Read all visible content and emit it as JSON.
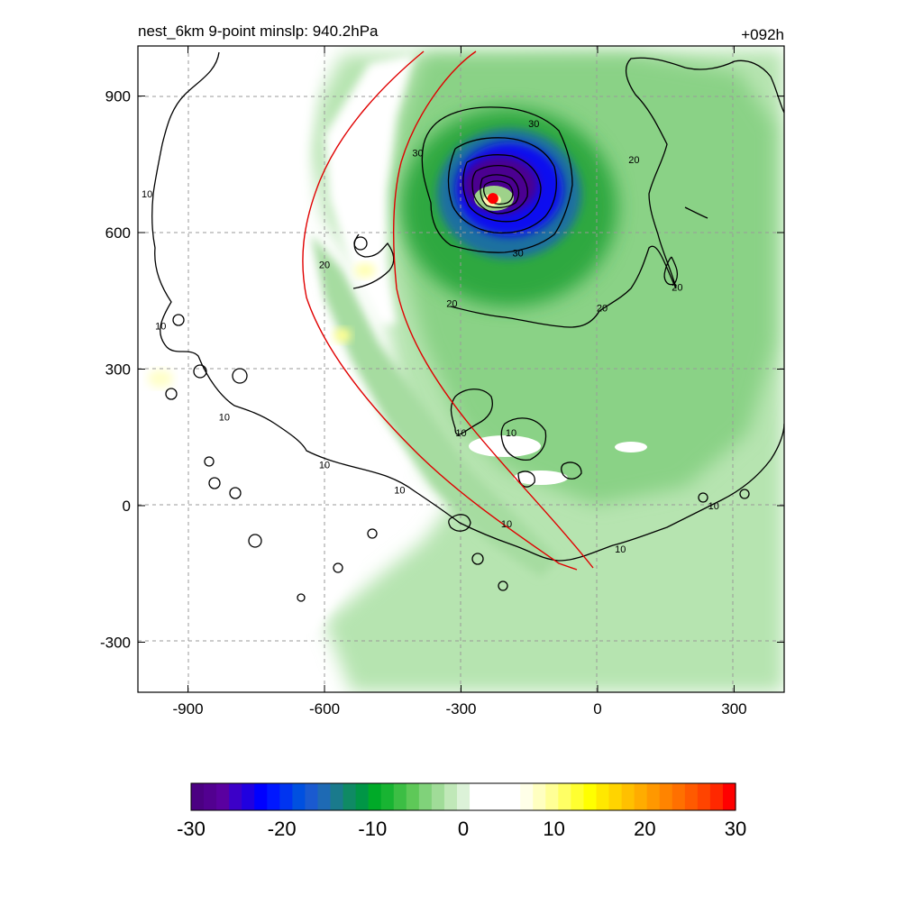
{
  "chart_data": {
    "type": "heatmap",
    "title_left": "nest_6km  9-point minslp: 940.2hPa",
    "title_right": "+092h",
    "xlabel": "",
    "ylabel": "",
    "xlim": [
      -1010,
      410
    ],
    "ylim": [
      -410,
      1010
    ],
    "x_ticks": [
      -900,
      -600,
      -300,
      0,
      300
    ],
    "y_ticks": [
      900,
      600,
      300,
      0,
      -300
    ],
    "x_tick_labels": [
      "-900",
      "-600",
      "-300",
      "0",
      "300"
    ],
    "y_tick_labels": [
      "900",
      "600",
      "300",
      "0",
      "-300"
    ],
    "grid": "dashed",
    "storm_center": {
      "x": -230,
      "y": 675,
      "color": "#ff0000"
    },
    "contour_labels": [
      {
        "text": "30",
        "x": -140,
        "y": 840
      },
      {
        "text": "30",
        "x": -395,
        "y": 775
      },
      {
        "text": "30",
        "x": -175,
        "y": 555
      },
      {
        "text": "20",
        "x": 80,
        "y": 760
      },
      {
        "text": "20",
        "x": 175,
        "y": 480
      },
      {
        "text": "20",
        "x": -320,
        "y": 445
      },
      {
        "text": "20",
        "x": 10,
        "y": 435
      },
      {
        "text": "20",
        "x": -600,
        "y": 530
      },
      {
        "text": "10",
        "x": -990,
        "y": 685
      },
      {
        "text": "10",
        "x": -960,
        "y": 395
      },
      {
        "text": "10",
        "x": -820,
        "y": 195
      },
      {
        "text": "10",
        "x": -600,
        "y": 90
      },
      {
        "text": "10",
        "x": -435,
        "y": 35
      },
      {
        "text": "10",
        "x": -300,
        "y": 160
      },
      {
        "text": "10",
        "x": -190,
        "y": 160
      },
      {
        "text": "10",
        "x": -200,
        "y": -40
      },
      {
        "text": "10",
        "x": 50,
        "y": -95
      },
      {
        "text": "10",
        "x": 255,
        "y": 0
      }
    ],
    "colorbar": {
      "ticks": [
        "-30",
        "-20",
        "-10",
        "0",
        "10",
        "20",
        "30"
      ],
      "range": [
        -30,
        30
      ],
      "colors": [
        "#4b0082",
        "#520090",
        "#5a00a0",
        "#3c00c8",
        "#2000e0",
        "#0000ff",
        "#0018ff",
        "#0034f0",
        "#0050e0",
        "#1a5ad0",
        "#1e6ab4",
        "#1a7a8c",
        "#0f8a64",
        "#009646",
        "#00aa28",
        "#18b432",
        "#3cbe44",
        "#5ec858",
        "#80d27a",
        "#a0dc98",
        "#c0e8b8",
        "#dcf2d8",
        "#ffffff",
        "#ffffff",
        "#ffffff",
        "#ffffff",
        "#ffffe8",
        "#ffffc0",
        "#ffff96",
        "#ffff64",
        "#ffff30",
        "#ffff00",
        "#ffe800",
        "#ffd400",
        "#ffc000",
        "#ffac00",
        "#ff9800",
        "#ff8400",
        "#ff7000",
        "#ff5a00",
        "#ff4400",
        "#ff2800",
        "#ff0000"
      ]
    }
  }
}
